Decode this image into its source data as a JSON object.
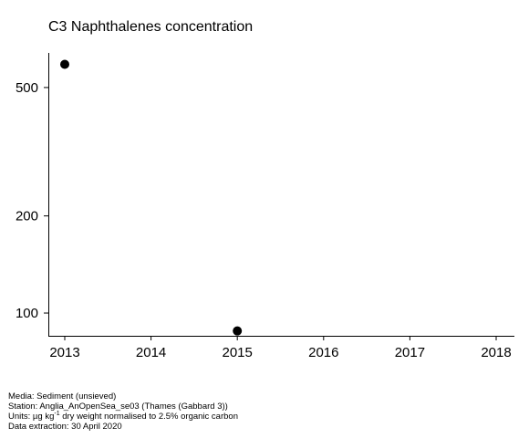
{
  "chart_data": {
    "type": "scatter",
    "title": "C3 Naphthalenes concentration",
    "xlabel": "",
    "ylabel": "",
    "x_ticks": [
      "2013",
      "2014",
      "2015",
      "2016",
      "2017",
      "2018"
    ],
    "y_ticks": [
      "100",
      "200",
      "500"
    ],
    "y_scale": "log",
    "xlim": [
      2013,
      2018
    ],
    "ylim": [
      85,
      640
    ],
    "grid": false,
    "points": [
      {
        "x": 2013,
        "y": 590
      },
      {
        "x": 2015,
        "y": 88
      }
    ],
    "marker_color": "#000000"
  },
  "footer": {
    "media": "Media: Sediment (unsieved)",
    "station": "Station: Anglia_AnOpenSea_se03 (Thames (Gabbard 3))",
    "units_prefix": "Units:  µg kg",
    "units_sup": "-1",
    "units_suffix": " dry weight normalised to 2.5% organic carbon",
    "extraction": "Data extraction: 30 April 2020"
  }
}
